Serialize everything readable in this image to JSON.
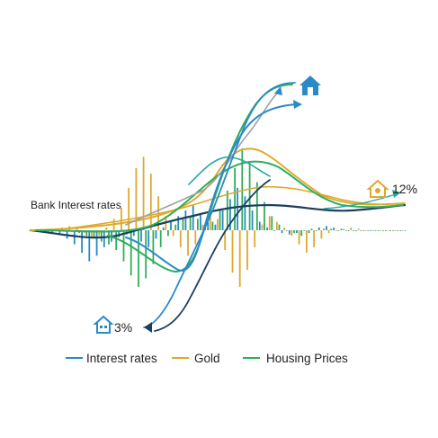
{
  "chart_data": {
    "type": "bar",
    "title": "",
    "xlabel": "",
    "ylabel": "",
    "annotations": {
      "axis_label": "Bank Interest rates",
      "low_value": "3%",
      "high_value": "12%",
      "low_icon": "house-icon",
      "high_icon": "house-icon",
      "top_icon": "house-icon"
    },
    "legend": {
      "placement": "bottom",
      "entries": [
        {
          "name": "Interest rates",
          "color": "#2a8ac8"
        },
        {
          "name": "Gold",
          "color": "#e0a92d"
        },
        {
          "name": "Housing Prices",
          "color": "#2fae5b"
        }
      ]
    },
    "colors": {
      "navy": "#1c3f5f",
      "teal": "#2aa8a0"
    },
    "x": [
      0,
      2,
      4,
      6,
      8,
      10,
      12,
      14,
      16,
      18,
      20,
      22,
      24,
      26,
      28,
      30,
      32,
      34,
      36,
      38,
      40,
      42,
      44,
      46,
      48,
      50,
      52,
      54,
      56,
      58,
      60,
      62,
      64,
      66,
      68,
      70,
      72,
      74,
      76,
      78,
      80,
      82,
      84,
      86,
      88,
      90,
      92,
      94,
      96,
      98,
      100
    ],
    "series": [
      {
        "name": "Interest rates",
        "values": [
          0,
          0,
          -1,
          -2,
          -3,
          -6,
          -10,
          -16,
          -22,
          -18,
          -12,
          -8,
          -5,
          -3,
          -4,
          -8,
          -12,
          -6,
          2,
          6,
          10,
          14,
          18,
          12,
          8,
          4,
          14,
          22,
          30,
          24,
          14,
          6,
          2,
          0,
          -2,
          -3,
          -2,
          0,
          1,
          2,
          3,
          2,
          1,
          0,
          0,
          0,
          0,
          0,
          0,
          0,
          0
        ]
      },
      {
        "name": "Gold",
        "values": [
          0,
          0,
          0,
          1,
          2,
          3,
          2,
          -2,
          -6,
          -4,
          2,
          8,
          16,
          30,
          44,
          52,
          40,
          24,
          10,
          -4,
          -12,
          -18,
          -10,
          4,
          12,
          8,
          -14,
          -30,
          -40,
          -28,
          -12,
          4,
          10,
          6,
          2,
          -4,
          -10,
          -16,
          -12,
          -6,
          -2,
          0,
          1,
          2,
          1,
          0,
          0,
          0,
          0,
          0,
          0
        ]
      },
      {
        "name": "Housing Prices",
        "values": [
          0,
          0,
          0,
          0,
          0,
          -1,
          -2,
          -4,
          -6,
          -8,
          -10,
          -14,
          -22,
          -32,
          -40,
          -34,
          -24,
          -12,
          -4,
          4,
          8,
          10,
          8,
          4,
          6,
          14,
          28,
          44,
          58,
          48,
          34,
          20,
          10,
          4,
          0,
          -2,
          -4,
          -2,
          0,
          1,
          1,
          0,
          0,
          0,
          0,
          0,
          0,
          0,
          0,
          0,
          0
        ]
      }
    ],
    "ylim": [
      -70,
      70
    ]
  }
}
